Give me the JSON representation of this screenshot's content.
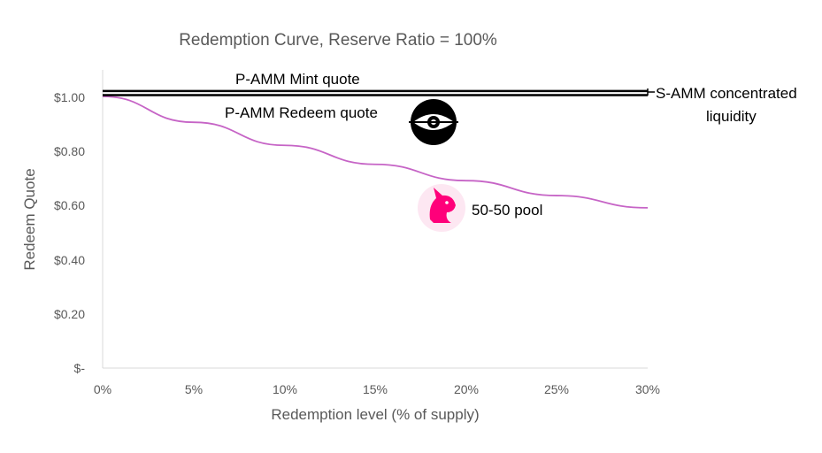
{
  "chart_data": {
    "type": "line",
    "title": "Redemption Curve, Reserve Ratio = 100%",
    "xlabel": "Redemption level (% of supply)",
    "ylabel": "Redeem Quote",
    "xlim": [
      0,
      30
    ],
    "ylim": [
      0,
      1
    ],
    "x_ticks": [
      "0%",
      "5%",
      "10%",
      "15%",
      "20%",
      "25%",
      "30%"
    ],
    "y_ticks": [
      "$-",
      "$0.20",
      "$0.40",
      "$0.60",
      "$0.80",
      "$1.00"
    ],
    "grid": false,
    "legend": "none",
    "series": [
      {
        "color": "#c664c6",
        "x": [
          0,
          5,
          10,
          15,
          20,
          25,
          30
        ],
        "values": [
          1.0,
          0.905,
          0.82,
          0.75,
          0.69,
          0.635,
          0.59
        ]
      },
      {
        "color": "#000000",
        "x": [
          0,
          30
        ],
        "values": [
          1.02,
          1.02
        ]
      },
      {
        "color": "#000000",
        "x": [
          0,
          30
        ],
        "values": [
          1.005,
          1.005
        ]
      }
    ],
    "annotations": {
      "mint": "P-AMM Mint quote",
      "redeem": "P-AMM Redeem quote",
      "samm_line1": "S-AMM concentrated",
      "samm_line2": "liquidity",
      "pool": "50-50 pool"
    },
    "icons": {
      "redeem_logo": "black-eye-logo-icon",
      "pool_logo": "unicorn-logo-icon"
    }
  }
}
